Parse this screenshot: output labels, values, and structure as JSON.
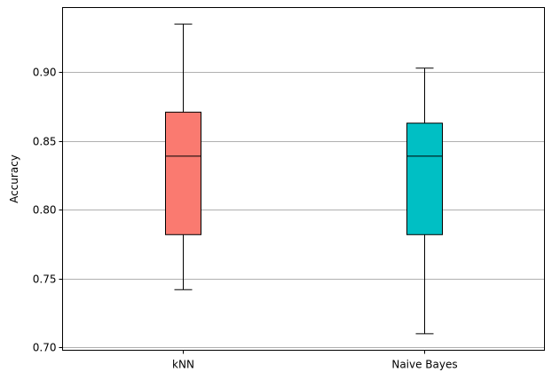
{
  "chart_data": {
    "type": "box",
    "title": "",
    "xlabel": "",
    "ylabel": "Accuracy",
    "ylim": [
      0.698,
      0.947
    ],
    "yticks": [
      0.7,
      0.75,
      0.8,
      0.85,
      0.9
    ],
    "ytick_labels": [
      "0.70",
      "0.75",
      "0.80",
      "0.85",
      "0.90"
    ],
    "grid": "horizontal",
    "categories": [
      "kNN",
      "Naive Bayes"
    ],
    "boxes": [
      {
        "category": "kNN",
        "whisker_low": 0.742,
        "q1": 0.782,
        "median": 0.839,
        "q3": 0.871,
        "whisker_high": 0.935,
        "color": "#FA7A70"
      },
      {
        "category": "Naive Bayes",
        "whisker_low": 0.71,
        "q1": 0.782,
        "median": 0.839,
        "q3": 0.863,
        "whisker_high": 0.903,
        "color": "#00BFC4"
      }
    ]
  }
}
